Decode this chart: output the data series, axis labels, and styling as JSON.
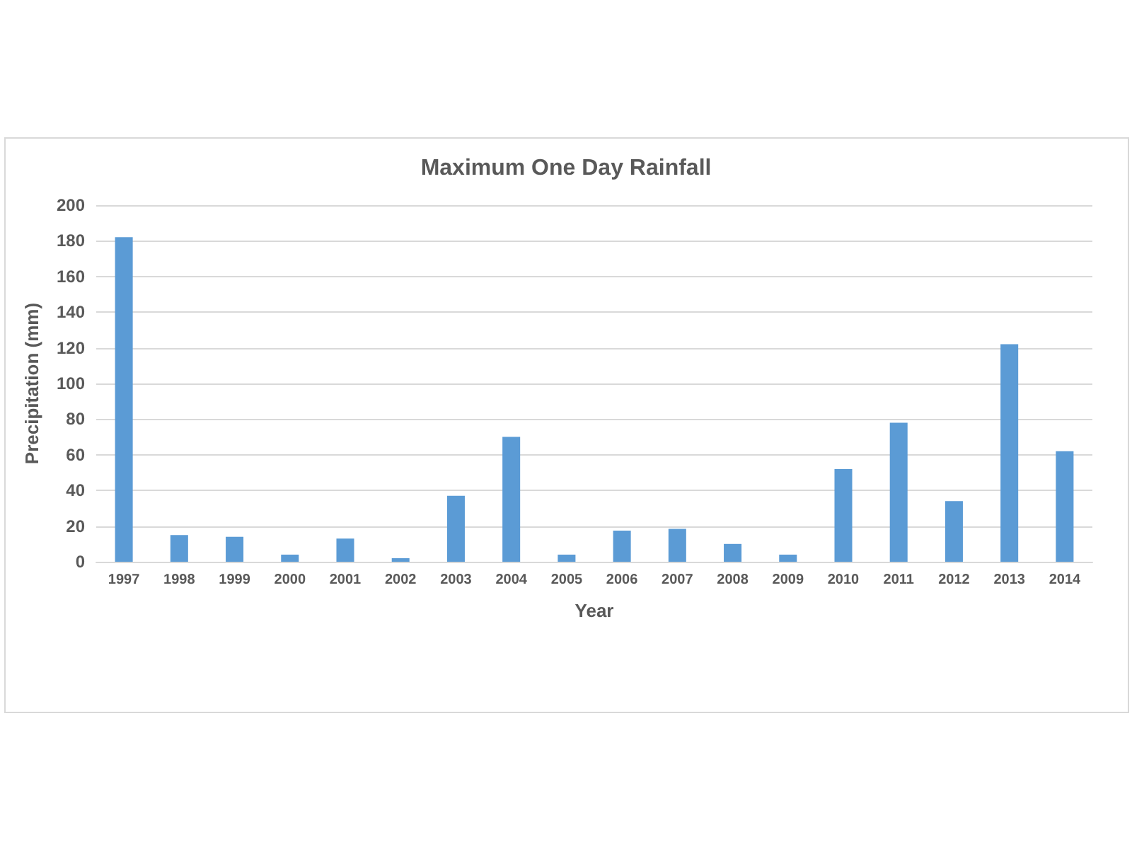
{
  "chart_data": {
    "type": "bar",
    "title": "Maximum One Day Rainfall",
    "xlabel": "Year",
    "ylabel": "Precipitation (mm)",
    "categories": [
      "1997",
      "1998",
      "1999",
      "2000",
      "2001",
      "2002",
      "2003",
      "2004",
      "2005",
      "2006",
      "2007",
      "2008",
      "2009",
      "2010",
      "2011",
      "2012",
      "2013",
      "2014"
    ],
    "values": [
      182,
      15,
      14,
      4,
      13,
      2,
      37,
      70,
      4,
      17.5,
      18.5,
      10,
      4,
      52,
      78,
      34,
      122,
      62
    ],
    "color": "#5b9bd5",
    "ylim": [
      0,
      200
    ],
    "yticks": [
      0,
      20,
      40,
      60,
      80,
      100,
      120,
      140,
      160,
      180,
      200
    ],
    "grid": "y"
  }
}
